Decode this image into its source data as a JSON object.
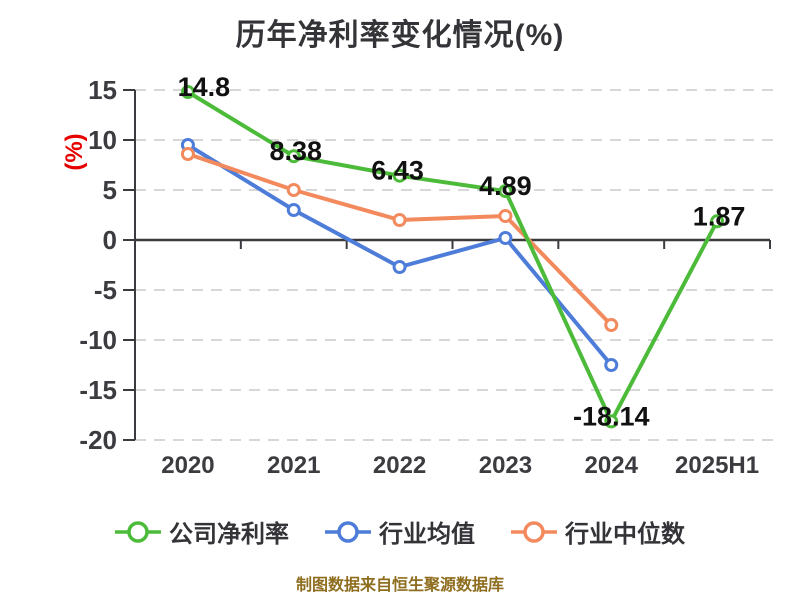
{
  "title": "历年净利率变化情况(%)",
  "footer": "制图数据来自恒生聚源数据库",
  "chart_data": {
    "type": "line",
    "title": "历年净利率变化情况(%)",
    "ylabel": "(%)",
    "xlabel": "",
    "categories": [
      "2020",
      "2021",
      "2022",
      "2023",
      "2024",
      "2025H1"
    ],
    "series": [
      {
        "name": "行业均值",
        "color": "#4d7cd9",
        "values": [
          9.5,
          3.0,
          -2.7,
          0.2,
          -12.5,
          null
        ]
      },
      {
        "name": "行业中位数",
        "color": "#f28a5e",
        "values": [
          8.6,
          5.0,
          2.0,
          2.4,
          -8.5,
          null
        ]
      },
      {
        "name": "公司净利率",
        "color": "#4dbb3a",
        "values": [
          14.8,
          8.38,
          6.43,
          4.89,
          -18.14,
          1.87
        ],
        "value_labels": [
          "14.8",
          "8.38",
          "6.43",
          "4.89",
          "-18.14",
          "1.87"
        ]
      }
    ],
    "legend_order": [
      "公司净利率",
      "行业均值",
      "行业中位数"
    ],
    "ylim": [
      -20,
      15
    ],
    "yticks": [
      15,
      10,
      5,
      0,
      -5,
      -10,
      -15,
      -20
    ],
    "grid": "dashed horizontal",
    "legend_position": "bottom",
    "colors": {
      "grid_line": "#d7d7d7",
      "axis_line": "#3a3a3f",
      "tick_label": "#3b3b40",
      "data_label": "#111111",
      "title": "#333338",
      "ylabel": "#e60000",
      "footer": "#8e6d1f"
    }
  }
}
